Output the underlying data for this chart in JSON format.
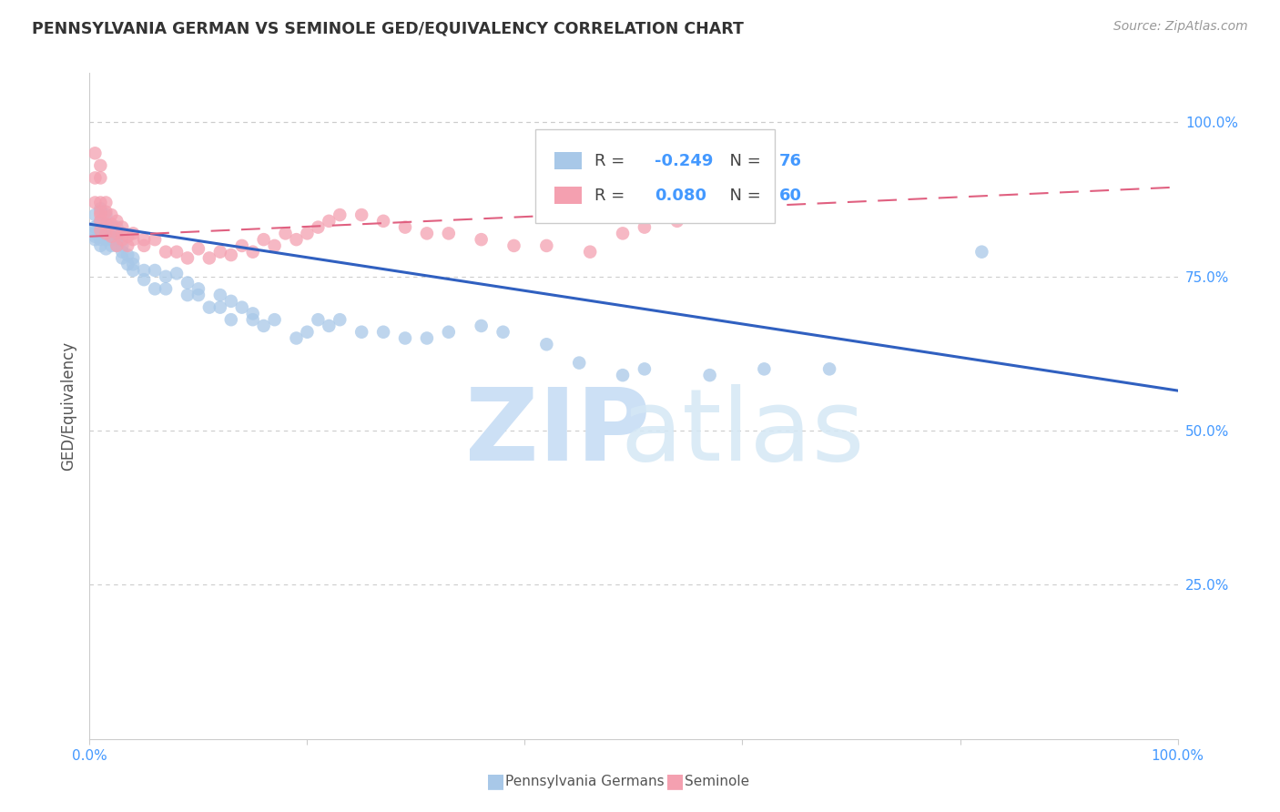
{
  "title": "PENNSYLVANIA GERMAN VS SEMINOLE GED/EQUIVALENCY CORRELATION CHART",
  "source": "Source: ZipAtlas.com",
  "ylabel": "GED/Equivalency",
  "ytick_labels": [
    "100.0%",
    "75.0%",
    "50.0%",
    "25.0%"
  ],
  "ytick_values": [
    1.0,
    0.75,
    0.5,
    0.25
  ],
  "xlim": [
    0.0,
    1.0
  ],
  "ylim": [
    0.0,
    1.08
  ],
  "legend_blue_r": "-0.249",
  "legend_blue_n": "76",
  "legend_pink_r": "0.080",
  "legend_pink_n": "60",
  "legend_labels": [
    "Pennsylvania Germans",
    "Seminole"
  ],
  "blue_color": "#a8c8e8",
  "pink_color": "#f4a0b0",
  "blue_line_color": "#3060c0",
  "pink_line_color": "#e06080",
  "blue_line_y_start": 0.835,
  "blue_line_y_end": 0.565,
  "pink_line_y_start": 0.815,
  "pink_line_y_end": 0.895,
  "blue_scatter_x": [
    0.005,
    0.005,
    0.005,
    0.005,
    0.005,
    0.005,
    0.01,
    0.01,
    0.01,
    0.01,
    0.01,
    0.01,
    0.01,
    0.015,
    0.015,
    0.015,
    0.015,
    0.015,
    0.02,
    0.02,
    0.02,
    0.02,
    0.02,
    0.025,
    0.025,
    0.025,
    0.025,
    0.03,
    0.03,
    0.03,
    0.035,
    0.035,
    0.04,
    0.04,
    0.04,
    0.05,
    0.05,
    0.06,
    0.06,
    0.07,
    0.07,
    0.08,
    0.09,
    0.09,
    0.1,
    0.1,
    0.11,
    0.12,
    0.12,
    0.13,
    0.13,
    0.14,
    0.15,
    0.15,
    0.16,
    0.17,
    0.19,
    0.2,
    0.21,
    0.22,
    0.23,
    0.25,
    0.27,
    0.29,
    0.31,
    0.33,
    0.36,
    0.38,
    0.42,
    0.45,
    0.49,
    0.51,
    0.57,
    0.62,
    0.68,
    0.82
  ],
  "blue_scatter_y": [
    0.85,
    0.83,
    0.81,
    0.83,
    0.82,
    0.815,
    0.84,
    0.86,
    0.825,
    0.81,
    0.8,
    0.815,
    0.82,
    0.83,
    0.85,
    0.82,
    0.81,
    0.795,
    0.82,
    0.81,
    0.8,
    0.815,
    0.83,
    0.83,
    0.815,
    0.8,
    0.81,
    0.79,
    0.8,
    0.78,
    0.785,
    0.77,
    0.78,
    0.76,
    0.77,
    0.76,
    0.745,
    0.73,
    0.76,
    0.75,
    0.73,
    0.755,
    0.74,
    0.72,
    0.73,
    0.72,
    0.7,
    0.72,
    0.7,
    0.71,
    0.68,
    0.7,
    0.68,
    0.69,
    0.67,
    0.68,
    0.65,
    0.66,
    0.68,
    0.67,
    0.68,
    0.66,
    0.66,
    0.65,
    0.65,
    0.66,
    0.67,
    0.66,
    0.64,
    0.61,
    0.59,
    0.6,
    0.59,
    0.6,
    0.6,
    0.79
  ],
  "pink_scatter_x": [
    0.005,
    0.005,
    0.005,
    0.01,
    0.01,
    0.01,
    0.01,
    0.01,
    0.01,
    0.01,
    0.015,
    0.015,
    0.015,
    0.015,
    0.02,
    0.02,
    0.02,
    0.025,
    0.025,
    0.025,
    0.03,
    0.03,
    0.03,
    0.035,
    0.035,
    0.04,
    0.04,
    0.05,
    0.05,
    0.06,
    0.07,
    0.08,
    0.09,
    0.1,
    0.11,
    0.12,
    0.13,
    0.14,
    0.15,
    0.16,
    0.17,
    0.18,
    0.19,
    0.2,
    0.21,
    0.22,
    0.23,
    0.25,
    0.27,
    0.29,
    0.31,
    0.33,
    0.36,
    0.39,
    0.42,
    0.46,
    0.49,
    0.51,
    0.54,
    0.58
  ],
  "pink_scatter_y": [
    0.95,
    0.91,
    0.87,
    0.93,
    0.91,
    0.87,
    0.855,
    0.84,
    0.825,
    0.85,
    0.87,
    0.855,
    0.835,
    0.82,
    0.85,
    0.835,
    0.815,
    0.84,
    0.82,
    0.8,
    0.83,
    0.82,
    0.81,
    0.815,
    0.8,
    0.82,
    0.81,
    0.8,
    0.81,
    0.81,
    0.79,
    0.79,
    0.78,
    0.795,
    0.78,
    0.79,
    0.785,
    0.8,
    0.79,
    0.81,
    0.8,
    0.82,
    0.81,
    0.82,
    0.83,
    0.84,
    0.85,
    0.85,
    0.84,
    0.83,
    0.82,
    0.82,
    0.81,
    0.8,
    0.8,
    0.79,
    0.82,
    0.83,
    0.84,
    0.855
  ]
}
